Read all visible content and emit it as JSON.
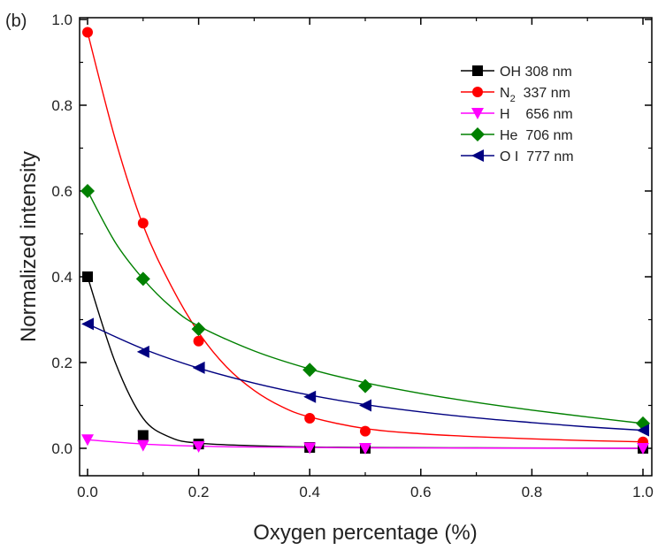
{
  "chart_data": {
    "type": "scatter",
    "panel_label": "(b)",
    "xlabel": "Oxygen percentage (%)",
    "ylabel": "Normalized intensity",
    "xlim": [
      0.0,
      1.0
    ],
    "ylim": [
      0.0,
      1.0
    ],
    "x_ticks": [
      "0.0",
      "0.2",
      "0.4",
      "0.6",
      "0.8",
      "1.0"
    ],
    "y_ticks": [
      "0.0",
      "0.2",
      "0.4",
      "0.6",
      "0.8",
      "1.0"
    ],
    "grid": false,
    "legend_position": "top-right",
    "x": [
      0.0,
      0.1,
      0.2,
      0.4,
      0.5,
      1.0
    ],
    "series": [
      {
        "name": "OH 308 nm",
        "color": "#000000",
        "marker": "square",
        "values": [
          0.4,
          0.03,
          0.01,
          0.002,
          0.0,
          0.0
        ],
        "fit": [
          [
            0.0,
            0.4
          ],
          [
            0.05,
            0.2
          ],
          [
            0.1,
            0.07
          ],
          [
            0.15,
            0.025
          ],
          [
            0.2,
            0.012
          ],
          [
            0.3,
            0.006
          ],
          [
            0.4,
            0.003
          ],
          [
            0.5,
            0.002
          ],
          [
            0.7,
            0.001
          ],
          [
            1.0,
            0.0
          ]
        ]
      },
      {
        "name_main": "N",
        "name_sub": "2",
        "name_rest": "  337 nm",
        "color": "#ff0000",
        "marker": "circle",
        "values": [
          0.97,
          0.525,
          0.25,
          0.07,
          0.04,
          0.015
        ],
        "fit": [
          [
            0.0,
            0.97
          ],
          [
            0.05,
            0.72
          ],
          [
            0.1,
            0.52
          ],
          [
            0.15,
            0.38
          ],
          [
            0.2,
            0.27
          ],
          [
            0.25,
            0.19
          ],
          [
            0.3,
            0.135
          ],
          [
            0.35,
            0.097
          ],
          [
            0.4,
            0.073
          ],
          [
            0.5,
            0.046
          ],
          [
            0.6,
            0.034
          ],
          [
            0.7,
            0.027
          ],
          [
            0.8,
            0.022
          ],
          [
            0.9,
            0.018
          ],
          [
            1.0,
            0.015
          ]
        ]
      },
      {
        "name": "H    656 nm",
        "color": "#ff00ff",
        "marker": "triangle-down",
        "values": [
          0.02,
          0.007,
          0.004,
          0.001,
          0.0,
          0.0
        ],
        "fit": [
          [
            0.0,
            0.02
          ],
          [
            0.1,
            0.01
          ],
          [
            0.2,
            0.005
          ],
          [
            0.3,
            0.003
          ],
          [
            0.4,
            0.002
          ],
          [
            0.5,
            0.001
          ],
          [
            0.7,
            0.0005
          ],
          [
            1.0,
            0.0
          ]
        ]
      },
      {
        "name": "He  706 nm",
        "color": "#008000",
        "marker": "diamond",
        "values": [
          0.6,
          0.395,
          0.278,
          0.183,
          0.145,
          0.058
        ],
        "fit": [
          [
            0.0,
            0.6
          ],
          [
            0.05,
            0.48
          ],
          [
            0.1,
            0.395
          ],
          [
            0.15,
            0.33
          ],
          [
            0.2,
            0.285
          ],
          [
            0.3,
            0.227
          ],
          [
            0.4,
            0.185
          ],
          [
            0.5,
            0.153
          ],
          [
            0.6,
            0.128
          ],
          [
            0.7,
            0.107
          ],
          [
            0.8,
            0.089
          ],
          [
            0.9,
            0.073
          ],
          [
            1.0,
            0.058
          ]
        ]
      },
      {
        "name": "O I  777 nm",
        "color": "#000080",
        "marker": "triangle-left",
        "values": [
          0.29,
          0.225,
          0.188,
          0.12,
          0.1,
          0.042
        ],
        "fit": [
          [
            0.0,
            0.29
          ],
          [
            0.1,
            0.232
          ],
          [
            0.2,
            0.187
          ],
          [
            0.3,
            0.152
          ],
          [
            0.4,
            0.124
          ],
          [
            0.5,
            0.102
          ],
          [
            0.6,
            0.085
          ],
          [
            0.7,
            0.071
          ],
          [
            0.8,
            0.06
          ],
          [
            0.9,
            0.05
          ],
          [
            1.0,
            0.042
          ]
        ]
      }
    ]
  }
}
